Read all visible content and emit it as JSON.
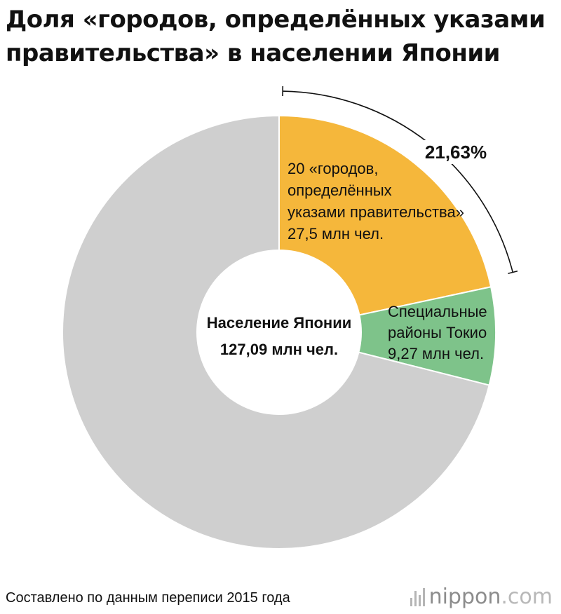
{
  "title": {
    "line1": "Доля «городов, определённых указами",
    "line2": "правительства» в населении Японии"
  },
  "chart_data": {
    "type": "pie",
    "center": {
      "line1": "Население Японии",
      "line2": "127,09 млн чел."
    },
    "total": 127.09,
    "slices": [
      {
        "label_lines": [
          "20 «городов,",
          "определённых",
          "указами правительства»",
          "27,5 млн чел."
        ],
        "value": 27.5,
        "color": "#f5b73b"
      },
      {
        "label_lines": [
          "Специальные",
          "районы Токио",
          "9,27 млн чел."
        ],
        "value": 9.27,
        "color": "#7ec38a"
      },
      {
        "label_lines": [],
        "value": 90.32,
        "color": "#cfcfcf"
      }
    ],
    "annotation": {
      "text": "21,63%",
      "spans_slices": [
        0
      ]
    }
  },
  "footer": {
    "source": "Составлено по данным переписи 2015 года",
    "logo_main": "nippon",
    "logo_suffix": ".com"
  }
}
